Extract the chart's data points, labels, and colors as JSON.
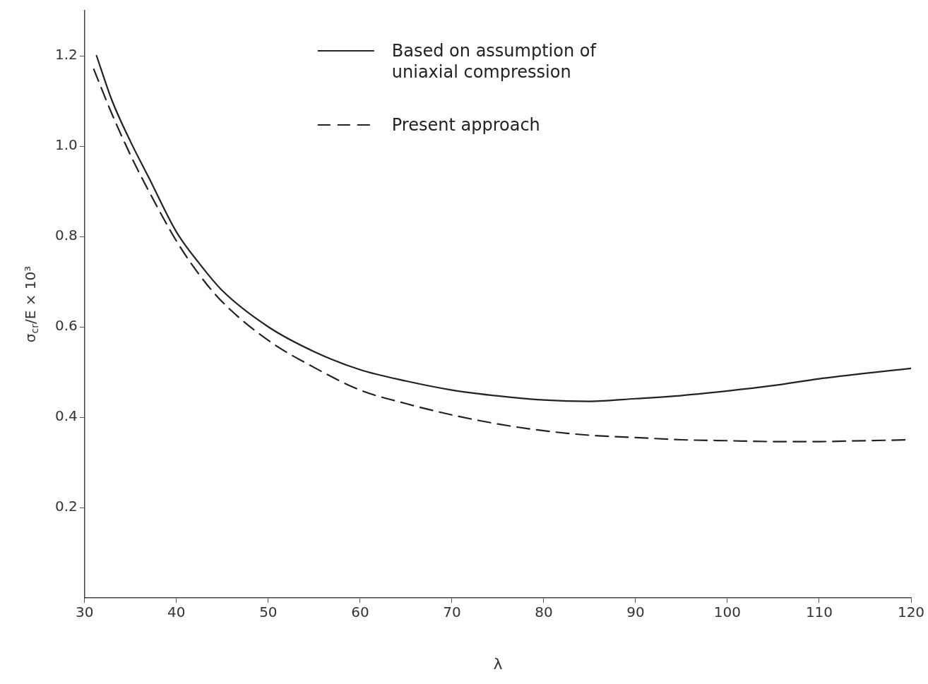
{
  "chart_data": {
    "type": "line",
    "xlabel": "λ",
    "ylabel": "σ$_{cr}$/E × 10³",
    "xlim": [
      30,
      120
    ],
    "xticks": [
      30,
      40,
      50,
      60,
      70,
      80,
      90,
      100,
      110,
      120
    ],
    "ylim": [
      0,
      1.3
    ],
    "yticks": [
      0.2,
      0.4,
      0.6,
      0.8,
      {
        "value": 1,
        "label": "1.0"
      },
      1.2
    ],
    "grid": false,
    "legend": "top",
    "marker": "none",
    "series": [
      {
        "name": "Based on assumption of uniaxial compression",
        "color": "#222222",
        "line_style": "solid",
        "x": [
          31.3,
          33,
          35,
          37,
          40,
          42.5,
          45,
          50,
          55,
          60,
          65,
          70,
          75,
          80,
          85,
          90,
          95,
          100,
          105,
          110,
          115,
          120
        ],
        "values": [
          1.2,
          1.1,
          1.01,
          0.93,
          0.81,
          0.74,
          0.68,
          0.6,
          0.545,
          0.505,
          0.48,
          0.46,
          0.447,
          0.438,
          0.435,
          0.441,
          0.448,
          0.458,
          0.47,
          0.485,
          0.497,
          0.508
        ]
      },
      {
        "name": "Present approach",
        "color": "#222222",
        "line_style": "dashed",
        "x": [
          31,
          33,
          35,
          37,
          40,
          42.5,
          45,
          50,
          55,
          60,
          65,
          70,
          75,
          80,
          85,
          90,
          95,
          100,
          105,
          110,
          115,
          120
        ],
        "values": [
          1.17,
          1.07,
          0.98,
          0.9,
          0.79,
          0.715,
          0.655,
          0.57,
          0.51,
          0.46,
          0.43,
          0.405,
          0.385,
          0.37,
          0.36,
          0.355,
          0.35,
          0.348,
          0.346,
          0.346,
          0.348,
          0.35
        ]
      }
    ]
  }
}
